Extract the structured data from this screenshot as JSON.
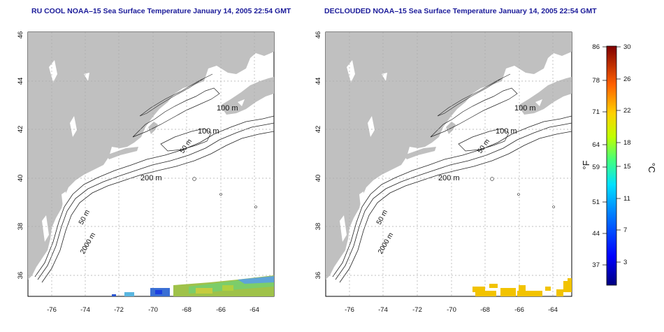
{
  "panels": [
    {
      "title": "RU COOL NOAA–15 Sea Surface Temperature January 14, 2005 22:54 GMT",
      "x_ticks": [
        "-76",
        "-74",
        "-72",
        "-70",
        "-68",
        "-66",
        "-64"
      ],
      "y_ticks": [
        "36",
        "38",
        "40",
        "42",
        "44",
        "46"
      ],
      "contour_labels": [
        "100 m",
        "100 m",
        "50 m",
        "200 m",
        "50 m",
        "2000 m"
      ]
    },
    {
      "title": "DECLOUDED NOAA–15 Sea Surface Temperature January 14, 2005 22:54 GMT",
      "x_ticks": [
        "-76",
        "-74",
        "-72",
        "-70",
        "-68",
        "-66",
        "-64"
      ],
      "y_ticks": [
        "36",
        "38",
        "40",
        "42",
        "44",
        "46"
      ],
      "contour_labels": [
        "100 m",
        "100 m",
        "50 m",
        "200 m",
        "50 m",
        "2000 m"
      ]
    }
  ],
  "colorbar": {
    "fahrenheit_ticks": [
      "86",
      "78",
      "71",
      "64",
      "59",
      "51",
      "44",
      "37"
    ],
    "celsius_ticks": [
      "30",
      "26",
      "22",
      "18",
      "15",
      "11",
      "7",
      "3"
    ],
    "fahrenheit_label": "°F",
    "celsius_label": "°C"
  },
  "colors": {
    "land": "#c0c0c0",
    "title": "#1a1a99",
    "grid": "#aaaaaa"
  }
}
